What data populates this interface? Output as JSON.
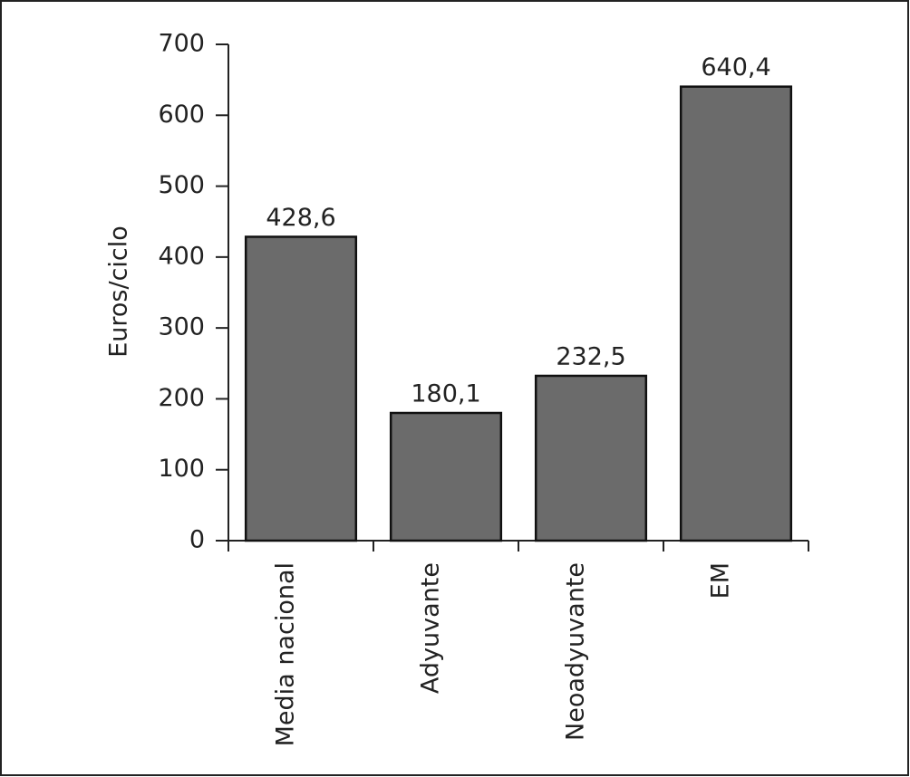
{
  "chart_data": {
    "type": "bar",
    "y_label": "Euros/ciclo",
    "categories": [
      "Media nacional",
      "Adyuvante",
      "Neoadyuvante",
      "EM"
    ],
    "values": [
      428.6,
      180.1,
      232.5,
      640.4
    ],
    "value_labels": [
      "428,6",
      "180,1",
      "232,5",
      "640,4"
    ],
    "color": "#6b6b6b",
    "ylim": [
      0,
      700
    ],
    "yticks": [
      0,
      100,
      200,
      300,
      400,
      500,
      600,
      700
    ]
  }
}
